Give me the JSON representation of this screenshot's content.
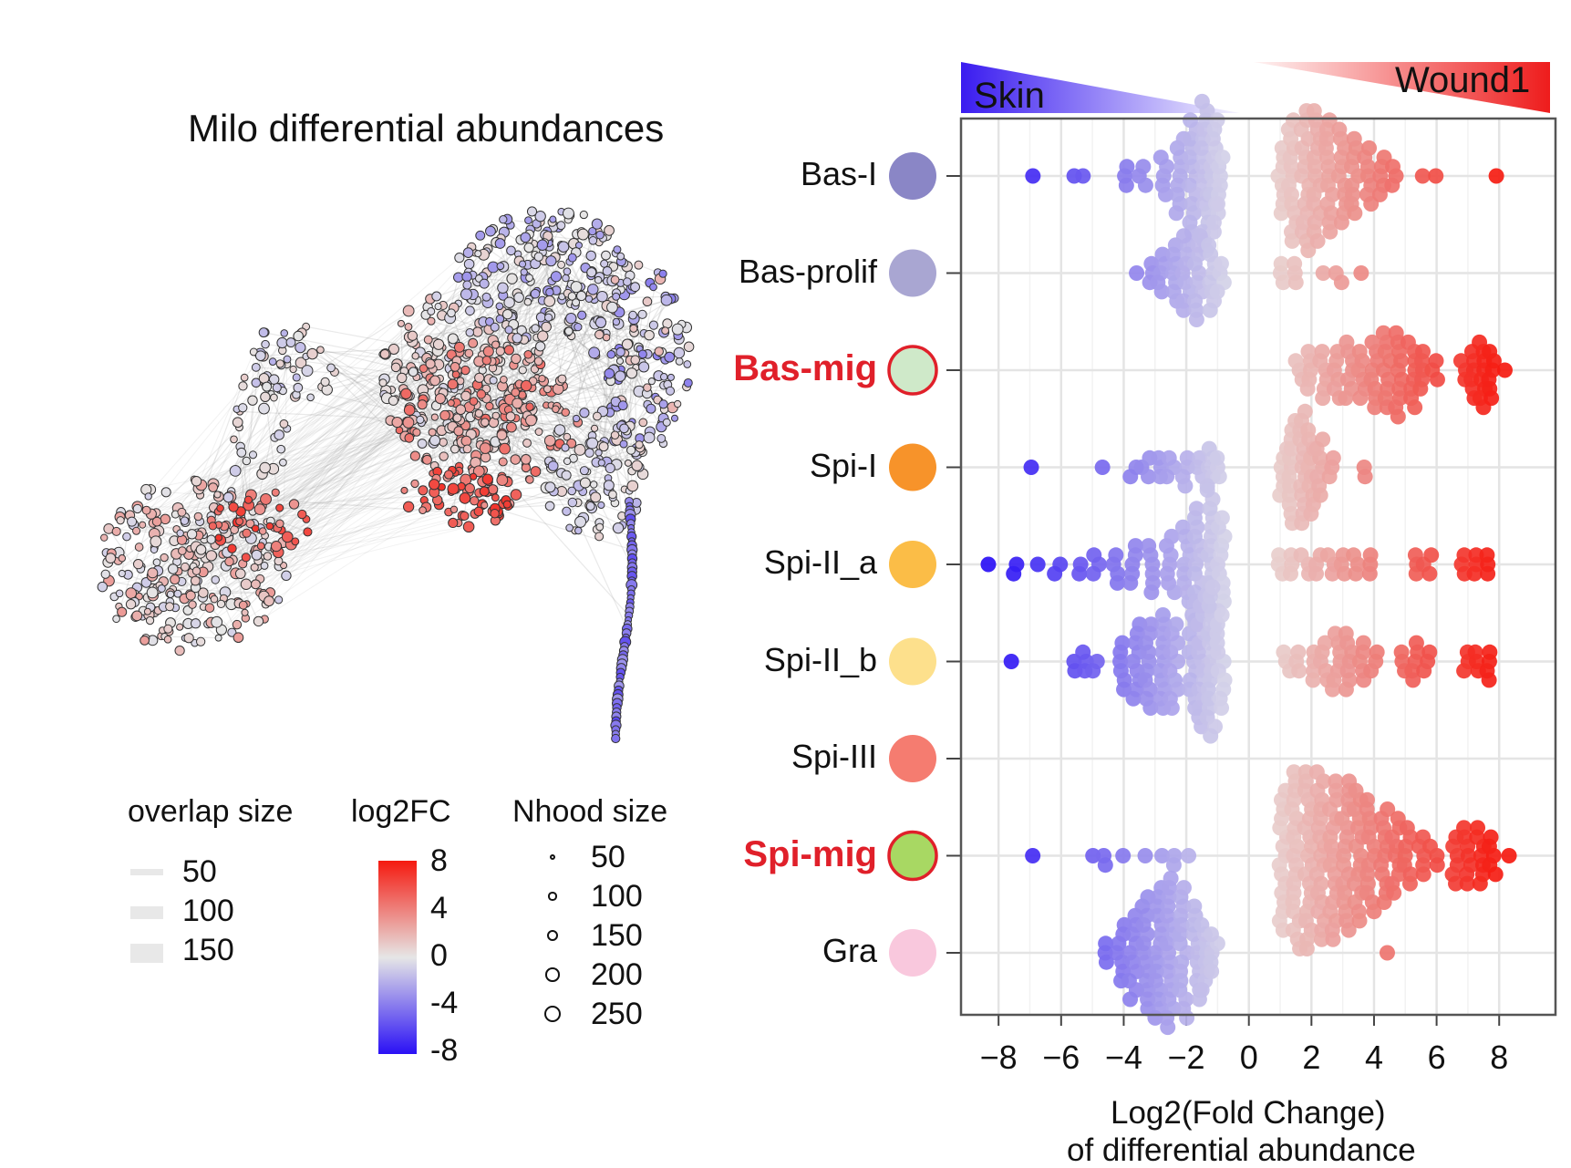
{
  "umap": {
    "title": "Milo differential abundances"
  },
  "legend": {
    "overlap": {
      "title": "overlap size",
      "items": [
        "50",
        "100",
        "150"
      ]
    },
    "log2fc": {
      "title": "log2FC",
      "ticks": [
        "8",
        "4",
        "0",
        "-4",
        "-8"
      ]
    },
    "nhood": {
      "title": "Nhood size",
      "items": [
        "50",
        "100",
        "150",
        "200",
        "250"
      ]
    }
  },
  "banners": {
    "left": {
      "label": "Skin",
      "color": "#3a1cf0"
    },
    "right": {
      "label": "Wound1",
      "color": "#ee1c1c"
    }
  },
  "colors": {
    "neg": "#2a10f5",
    "mid": "#e6e6e6",
    "pos": "#f51a10",
    "highlight": "#e0202a"
  },
  "chart_data": {
    "type": "scatter",
    "subtype": "beeswarm",
    "xlabel_line1": "Log2(Fold Change)",
    "xlabel_line2": "of differential abundance",
    "xlim": [
      -9.2,
      9.8
    ],
    "xticks": [
      "−8",
      "−6",
      "−4",
      "−2",
      "0",
      "2",
      "4",
      "6",
      "8"
    ],
    "xtick_values": [
      -8,
      -6,
      -4,
      -2,
      0,
      2,
      4,
      6,
      8
    ],
    "categories": [
      {
        "name": "Bas-I",
        "color": "#8a86c6",
        "highlight": false,
        "groups": [
          [
            -6.9,
            1
          ],
          [
            -5.6,
            1
          ],
          [
            -5.2,
            1
          ],
          [
            -3.9,
            3
          ],
          [
            -3.4,
            3
          ],
          [
            -2.7,
            5
          ],
          [
            -2.2,
            9
          ],
          [
            -1.8,
            13
          ],
          [
            -1.4,
            17
          ],
          [
            -1.1,
            13
          ],
          [
            -0.9,
            6
          ],
          [
            1.0,
            8
          ],
          [
            1.4,
            14
          ],
          [
            1.8,
            16
          ],
          [
            2.2,
            15
          ],
          [
            2.6,
            13
          ],
          [
            3.0,
            11
          ],
          [
            3.4,
            9
          ],
          [
            3.8,
            7
          ],
          [
            4.2,
            5
          ],
          [
            4.6,
            3
          ],
          [
            5.5,
            1
          ],
          [
            5.9,
            1
          ],
          [
            7.8,
            1
          ]
        ]
      },
      {
        "name": "Bas-prolif",
        "color": "#a9a6d2",
        "highlight": false,
        "groups": [
          [
            -3.6,
            1
          ],
          [
            -3.2,
            3
          ],
          [
            -2.8,
            5
          ],
          [
            -2.4,
            7
          ],
          [
            -2.0,
            9
          ],
          [
            -1.6,
            10
          ],
          [
            -1.2,
            8
          ],
          [
            -0.9,
            4
          ],
          [
            1.1,
            3
          ],
          [
            1.5,
            3
          ],
          [
            2.5,
            1
          ],
          [
            2.9,
            2
          ],
          [
            3.6,
            1
          ]
        ]
      },
      {
        "name": "Bas-mig",
        "color": "#cfe9c9",
        "highlight": true,
        "groups": [
          [
            1.6,
            3
          ],
          [
            2.0,
            5
          ],
          [
            2.4,
            6
          ],
          [
            2.8,
            6
          ],
          [
            3.2,
            7
          ],
          [
            3.6,
            6
          ],
          [
            4.0,
            8
          ],
          [
            4.4,
            9
          ],
          [
            4.8,
            10
          ],
          [
            5.2,
            8
          ],
          [
            5.6,
            5
          ],
          [
            5.9,
            3
          ],
          [
            6.9,
            3
          ],
          [
            7.2,
            6
          ],
          [
            7.5,
            8
          ],
          [
            7.8,
            6
          ],
          [
            8.2,
            1
          ]
        ]
      },
      {
        "name": "Spi-I",
        "color": "#f7932a",
        "highlight": false,
        "groups": [
          [
            -7.0,
            1
          ],
          [
            -4.8,
            1
          ],
          [
            -3.7,
            2
          ],
          [
            -3.3,
            3
          ],
          [
            -2.9,
            3
          ],
          [
            -2.5,
            3
          ],
          [
            -2.0,
            4
          ],
          [
            -1.6,
            3
          ],
          [
            -1.2,
            5
          ],
          [
            -0.9,
            3
          ],
          [
            1.1,
            6
          ],
          [
            1.4,
            12
          ],
          [
            1.7,
            13
          ],
          [
            2.0,
            10
          ],
          [
            2.3,
            7
          ],
          [
            2.7,
            3
          ],
          [
            3.7,
            2
          ]
        ]
      },
      {
        "name": "Spi-II_a",
        "color": "#fbbd47",
        "highlight": false,
        "groups": [
          [
            -8.2,
            1
          ],
          [
            -7.5,
            2
          ],
          [
            -6.8,
            1
          ],
          [
            -6.1,
            2
          ],
          [
            -5.5,
            2
          ],
          [
            -4.9,
            3
          ],
          [
            -4.3,
            4
          ],
          [
            -3.7,
            5
          ],
          [
            -3.1,
            6
          ],
          [
            -2.5,
            7
          ],
          [
            -2.0,
            9
          ],
          [
            -1.6,
            13
          ],
          [
            -1.2,
            17
          ],
          [
            -0.9,
            11
          ],
          [
            1.0,
            3
          ],
          [
            1.4,
            3
          ],
          [
            1.8,
            3
          ],
          [
            2.2,
            3
          ],
          [
            2.6,
            3
          ],
          [
            3.0,
            3
          ],
          [
            3.4,
            3
          ],
          [
            3.8,
            3
          ],
          [
            5.3,
            3
          ],
          [
            5.7,
            3
          ],
          [
            6.9,
            3
          ],
          [
            7.3,
            3
          ],
          [
            7.7,
            3
          ]
        ]
      },
      {
        "name": "Spi-II_b",
        "color": "#fde08c",
        "highlight": false,
        "groups": [
          [
            -7.5,
            1
          ],
          [
            -5.5,
            2
          ],
          [
            -5.2,
            3
          ],
          [
            -4.9,
            2
          ],
          [
            -4.0,
            6
          ],
          [
            -3.6,
            9
          ],
          [
            -3.2,
            10
          ],
          [
            -2.8,
            11
          ],
          [
            -2.4,
            10
          ],
          [
            -1.8,
            11
          ],
          [
            -1.5,
            15
          ],
          [
            -1.2,
            17
          ],
          [
            -0.9,
            11
          ],
          [
            1.2,
            3
          ],
          [
            1.6,
            3
          ],
          [
            2.0,
            4
          ],
          [
            2.4,
            5
          ],
          [
            2.8,
            7
          ],
          [
            3.2,
            7
          ],
          [
            3.6,
            5
          ],
          [
            4.0,
            3
          ],
          [
            4.9,
            3
          ],
          [
            5.3,
            5
          ],
          [
            5.7,
            3
          ],
          [
            6.9,
            3
          ],
          [
            7.3,
            3
          ],
          [
            7.7,
            4
          ]
        ]
      },
      {
        "name": "Spi-III",
        "color": "#f57c70",
        "highlight": false,
        "groups": []
      },
      {
        "name": "Spi-mig",
        "color": "#a8d863",
        "highlight": true,
        "groups": [
          [
            -6.9,
            1
          ],
          [
            -5.1,
            1
          ],
          [
            -4.7,
            2
          ],
          [
            -3.9,
            1
          ],
          [
            -3.4,
            1
          ],
          [
            -2.9,
            1
          ],
          [
            -2.3,
            2
          ],
          [
            -1.8,
            1
          ],
          [
            1.1,
            16
          ],
          [
            1.5,
            20
          ],
          [
            1.9,
            20
          ],
          [
            2.3,
            19
          ],
          [
            2.7,
            18
          ],
          [
            3.1,
            17
          ],
          [
            3.5,
            15
          ],
          [
            3.9,
            13
          ],
          [
            4.3,
            11
          ],
          [
            4.7,
            9
          ],
          [
            5.1,
            7
          ],
          [
            5.5,
            5
          ],
          [
            5.9,
            3
          ],
          [
            6.6,
            6
          ],
          [
            7.0,
            7
          ],
          [
            7.4,
            7
          ],
          [
            7.8,
            5
          ],
          [
            8.2,
            1
          ]
        ]
      },
      {
        "name": "Gra",
        "color": "#f9c8dd",
        "highlight": false,
        "groups": [
          [
            -4.5,
            3
          ],
          [
            -4.1,
            7
          ],
          [
            -3.7,
            10
          ],
          [
            -3.3,
            13
          ],
          [
            -2.9,
            15
          ],
          [
            -2.5,
            17
          ],
          [
            -2.1,
            15
          ],
          [
            -1.7,
            11
          ],
          [
            -1.4,
            8
          ],
          [
            -1.1,
            5
          ],
          [
            4.5,
            1
          ]
        ]
      }
    ]
  }
}
